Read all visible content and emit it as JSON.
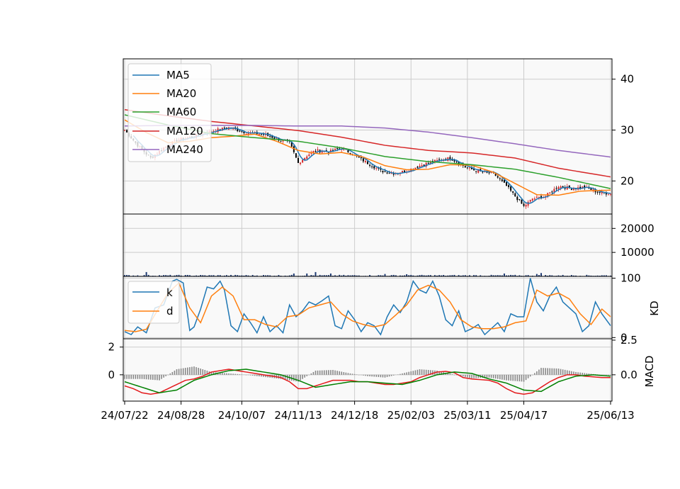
{
  "colors": {
    "panel_bg": "#f9f9f9",
    "grid": "#cccccc",
    "ma5": "#1f77b4",
    "ma20": "#ff7f0e",
    "ma60": "#2ca02c",
    "ma120": "#d62728",
    "ma240": "#9467bd",
    "candle_up": "#d62728",
    "candle_down": "#000000",
    "volume_bar": "#1f3b73",
    "k": "#1f77b4",
    "d": "#ff7f0e",
    "macd_dif": "#e31a1c",
    "macd_signal": "#008000",
    "macd_hist": "#888888"
  },
  "chart_data": {
    "type": "line",
    "x_tick_labels": [
      "24/07/22",
      "24/08/28",
      "24/10/07",
      "24/11/13",
      "24/12/18",
      "25/02/03",
      "25/03/11",
      "25/04/17",
      "25/06/13"
    ],
    "x_tick_index": [
      0,
      26,
      54,
      80,
      106,
      132,
      158,
      184,
      224
    ],
    "num_sessions": 225,
    "panels": [
      {
        "id": "price",
        "ylim": [
          13.5,
          44
        ],
        "ytick_labels": [
          "20",
          "30",
          "40"
        ],
        "yticks": [
          20,
          30,
          40
        ],
        "legend_position": "upper-left",
        "candles_anchor": {
          "index": [
            0,
            6,
            12,
            18,
            24,
            32,
            40,
            48,
            56,
            64,
            72,
            76,
            80,
            84,
            88,
            94,
            100,
            106,
            112,
            118,
            124,
            130,
            136,
            142,
            150,
            158,
            164,
            170,
            176,
            180,
            184,
            188,
            194,
            200,
            206,
            212,
            218,
            224
          ],
          "close": [
            30,
            27,
            24.5,
            26.5,
            28,
            28.8,
            29.8,
            30.5,
            29.5,
            29.2,
            28,
            27.5,
            23.5,
            25,
            26,
            25.7,
            26.5,
            25,
            23.5,
            22,
            21.5,
            22,
            23,
            23.8,
            24.5,
            22.5,
            21.8,
            21.5,
            19,
            17,
            15,
            16.5,
            17,
            19,
            18.5,
            18.8,
            17.8,
            17.5
          ]
        },
        "series": [
          {
            "name": "MA5"
          },
          {
            "name": "MA20",
            "x": [
              0,
              10,
              20,
              30,
              40,
              50,
              60,
              70,
              80,
              90,
              100,
              110,
              120,
              130,
              140,
              150,
              160,
              170,
              180,
              190,
              200,
              210,
              224
            ],
            "y": [
              32,
              29.5,
              27.5,
              27.8,
              28.5,
              28.8,
              29.2,
              27.8,
              26,
              25.3,
              25.6,
              24.7,
              23,
              22.2,
              22.3,
              23.2,
              23.1,
              21.7,
              19.5,
              17.3,
              17.2,
              18,
              18.2
            ]
          },
          {
            "name": "MA60",
            "x": [
              0,
              20,
              40,
              60,
              80,
              100,
              120,
              140,
              160,
              180,
              200,
              224
            ],
            "y": [
              33,
              31,
              29.3,
              28.5,
              27.8,
              26.5,
              24.8,
              23.8,
              23.2,
              22.3,
              20.7,
              18.5
            ]
          },
          {
            "name": "MA120",
            "x": [
              0,
              20,
              40,
              60,
              80,
              100,
              120,
              140,
              160,
              180,
              200,
              224
            ],
            "y": [
              34,
              32.8,
              31.7,
              30.8,
              29.9,
              28.6,
              27,
              26,
              25.5,
              24.5,
              22.5,
              20.8
            ]
          },
          {
            "name": "MA240",
            "x": [
              0,
              20,
              40,
              60,
              80,
              100,
              120,
              140,
              160,
              180,
              200,
              224
            ],
            "y": [
              30.8,
              30.9,
              30.9,
              30.9,
              30.8,
              30.8,
              30.4,
              29.6,
              28.5,
              27.3,
              26,
              24.7
            ]
          }
        ]
      },
      {
        "id": "volume",
        "ylim": [
          0,
          26000
        ],
        "ytick_labels": [
          "10000",
          "20000"
        ],
        "yticks": [
          10000,
          20000
        ],
        "spike_index": [
          10,
          78,
          84,
          88,
          95,
          120,
          130,
          175,
          190,
          192
        ],
        "spike_value": [
          1800,
          1200,
          1200,
          1800,
          1200,
          1000,
          900,
          1200,
          1000,
          1400
        ],
        "base_value": [
          150,
          650
        ]
      },
      {
        "id": "kd",
        "ylim": [
          -2,
          103
        ],
        "ytick_labels": [
          "0",
          "100"
        ],
        "yticks": [
          0,
          100
        ],
        "ylabel": "KD",
        "legend_position": "upper-left",
        "series": [
          {
            "name": "k",
            "x": [
              0,
              3,
              6,
              10,
              14,
              18,
              22,
              24,
              27,
              30,
              32,
              35,
              38,
              41,
              44,
              46,
              49,
              52,
              55,
              58,
              61,
              64,
              67,
              70,
              73,
              76,
              79,
              82,
              85,
              88,
              91,
              94,
              97,
              100,
              103,
              106,
              109,
              112,
              115,
              118,
              121,
              124,
              127,
              130,
              133,
              136,
              139,
              142,
              145,
              148,
              151,
              154,
              157,
              160,
              163,
              166,
              169,
              172,
              175,
              178,
              181,
              184,
              187,
              190,
              193,
              196,
              199,
              202,
              205,
              208,
              211,
              214,
              217,
              220,
              224
            ],
            "y": [
              10,
              5,
              18,
              8,
              50,
              55,
              95,
              98,
              92,
              12,
              18,
              48,
              85,
              82,
              95,
              80,
              20,
              10,
              40,
              25,
              8,
              35,
              10,
              20,
              8,
              55,
              35,
              45,
              60,
              55,
              62,
              70,
              20,
              15,
              45,
              30,
              10,
              25,
              20,
              5,
              35,
              55,
              42,
              60,
              95,
              80,
              75,
              95,
              70,
              30,
              20,
              45,
              10,
              15,
              22,
              5,
              15,
              25,
              10,
              40,
              35,
              35,
              100,
              60,
              45,
              70,
              85,
              60,
              50,
              40,
              10,
              20,
              60,
              40,
              20
            ]
          },
          {
            "name": "d",
            "x": [
              0,
              5,
              10,
              15,
              20,
              25,
              30,
              35,
              40,
              45,
              50,
              55,
              60,
              65,
              70,
              75,
              80,
              85,
              90,
              95,
              100,
              105,
              110,
              115,
              120,
              125,
              130,
              135,
              140,
              145,
              150,
              155,
              160,
              165,
              170,
              175,
              180,
              185,
              190,
              195,
              200,
              205,
              210,
              215,
              220,
              224
            ],
            "y": [
              12,
              10,
              14,
              45,
              75,
              92,
              50,
              25,
              70,
              85,
              70,
              30,
              30,
              22,
              18,
              35,
              38,
              50,
              55,
              60,
              40,
              28,
              22,
              18,
              22,
              38,
              55,
              80,
              88,
              80,
              60,
              30,
              18,
              15,
              15,
              18,
              25,
              28,
              80,
              70,
              75,
              65,
              40,
              22,
              48,
              35
            ]
          }
        ]
      },
      {
        "id": "macd",
        "ylim": [
          -1.9,
          2.6
        ],
        "ytick_labels_left": [
          "0",
          "2"
        ],
        "yticks_left": [
          0,
          2
        ],
        "ytick_labels_right": [
          "0.0",
          "2.5"
        ],
        "yticks_right": [
          0,
          2.5
        ],
        "ylabel": "MACD",
        "series": [
          {
            "name": "dif",
            "x": [
              0,
              4,
              8,
              12,
              16,
              20,
              24,
              28,
              32,
              36,
              40,
              44,
              48,
              52,
              56,
              60,
              64,
              68,
              72,
              76,
              80,
              84,
              88,
              92,
              96,
              100,
              104,
              108,
              112,
              116,
              120,
              124,
              128,
              132,
              136,
              140,
              144,
              148,
              152,
              156,
              160,
              164,
              168,
              172,
              176,
              180,
              184,
              188,
              192,
              196,
              200,
              204,
              208,
              212,
              216,
              220,
              224
            ],
            "y": [
              -0.8,
              -1,
              -1.3,
              -1.4,
              -1.3,
              -1,
              -0.7,
              -0.4,
              -0.3,
              -0.1,
              0.2,
              0.3,
              0.4,
              0.3,
              0.2,
              0.1,
              0,
              -0.1,
              -0.2,
              -0.5,
              -1,
              -1,
              -0.8,
              -0.6,
              -0.4,
              -0.4,
              -0.4,
              -0.5,
              -0.5,
              -0.6,
              -0.7,
              -0.7,
              -0.6,
              -0.5,
              -0.2,
              0,
              0.2,
              0.25,
              0.15,
              -0.2,
              -0.3,
              -0.35,
              -0.4,
              -0.6,
              -1,
              -1.3,
              -1.4,
              -1.3,
              -0.9,
              -0.5,
              -0.2,
              0,
              0,
              -0.1,
              -0.15,
              -0.2,
              -0.2
            ]
          },
          {
            "name": "signal",
            "x": [
              0,
              8,
              16,
              24,
              32,
              40,
              48,
              56,
              64,
              72,
              80,
              88,
              96,
              104,
              112,
              120,
              128,
              136,
              144,
              152,
              160,
              168,
              176,
              184,
              192,
              200,
              208,
              216,
              224
            ],
            "y": [
              -0.5,
              -0.9,
              -1.3,
              -1.1,
              -0.4,
              0,
              0.3,
              0.4,
              0.2,
              0,
              -0.4,
              -0.9,
              -0.7,
              -0.5,
              -0.5,
              -0.6,
              -0.7,
              -0.4,
              0,
              0.2,
              0.1,
              -0.3,
              -0.6,
              -1.1,
              -1.2,
              -0.5,
              -0.1,
              0,
              -0.1
            ]
          },
          {
            "name": "hist",
            "x": [
              0,
              8,
              16,
              24,
              32,
              40,
              48,
              56,
              64,
              72,
              80,
              88,
              96,
              104,
              112,
              120,
              128,
              136,
              144,
              152,
              160,
              168,
              176,
              184,
              192,
              200,
              208,
              216,
              224
            ],
            "y": [
              -0.3,
              -0.3,
              -0.4,
              0.4,
              0.6,
              0.2,
              0.1,
              0,
              -0.15,
              -0.3,
              -0.5,
              0.3,
              0.35,
              0.1,
              -0.1,
              -0.2,
              0.1,
              0.4,
              0.3,
              0,
              -0.25,
              -0.2,
              -0.4,
              -0.5,
              0.5,
              0.45,
              0.2,
              0.05,
              -0.05
            ]
          }
        ]
      }
    ]
  }
}
